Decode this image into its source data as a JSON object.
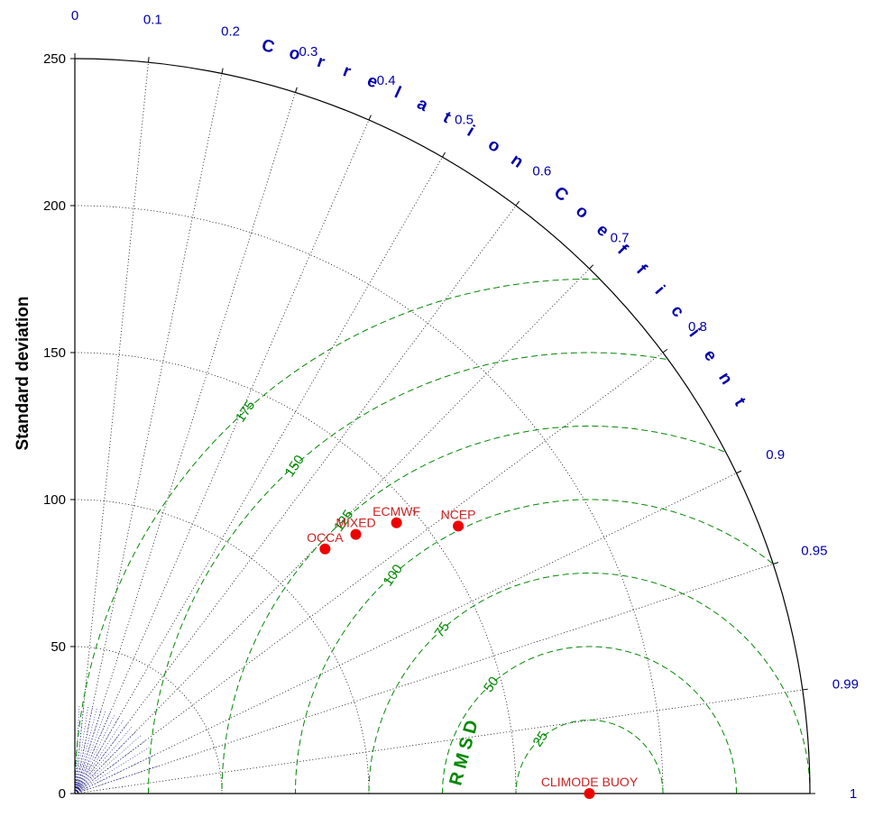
{
  "chart_data": {
    "type": "scatter",
    "subtype": "taylor-diagram",
    "ylabel": "Standard deviation",
    "correlation_label": "Correlation Coefficient",
    "rmsd_label": "RMSD",
    "sd_range": [
      0,
      250
    ],
    "sd_ticks": [
      0,
      50,
      100,
      150,
      200,
      250
    ],
    "correlation_ticks": [
      0,
      0.1,
      0.2,
      0.3,
      0.4,
      0.5,
      0.6,
      0.7,
      0.8,
      0.9,
      0.95,
      0.99,
      1
    ],
    "rmsd_contours": [
      25,
      50,
      75,
      100,
      125,
      150,
      175
    ],
    "reference_sd": 175,
    "grid": true,
    "colors": {
      "correlation": "#0000aa",
      "rmsd": "#008800",
      "points": "#ee0000",
      "point_labels": "#cc2222",
      "grid": "#000000"
    },
    "points": [
      {
        "name": "CLIMODE BUOY",
        "sd": 175,
        "correlation": 1.0
      },
      {
        "name": "NCEP",
        "sd": 159,
        "correlation": 0.82
      },
      {
        "name": "ECMWF",
        "sd": 143,
        "correlation": 0.765
      },
      {
        "name": "MIXED",
        "sd": 130,
        "correlation": 0.735
      },
      {
        "name": "OCCA",
        "sd": 119,
        "correlation": 0.715
      }
    ]
  }
}
